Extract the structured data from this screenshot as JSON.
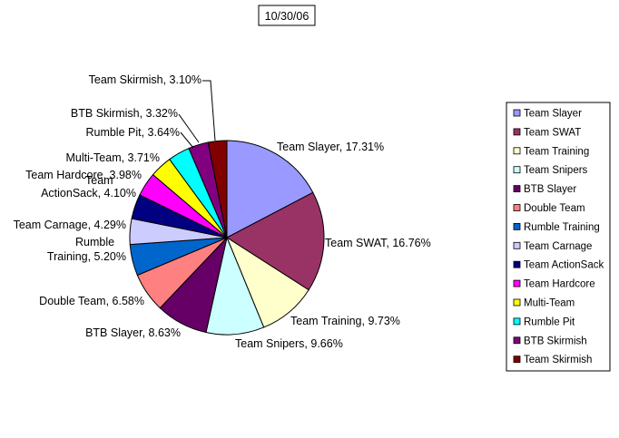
{
  "chart_data": {
    "type": "pie",
    "title": "10/30/06",
    "legend_position": "right",
    "slices": [
      {
        "name": "Team Slayer",
        "value": 17.31,
        "label": "Team Slayer, 17.31%",
        "color": "#9999ff"
      },
      {
        "name": "Team SWAT",
        "value": 16.76,
        "label": "Team SWAT, 16.76%",
        "color": "#993366"
      },
      {
        "name": "Team Training",
        "value": 9.73,
        "label": "Team Training, 9.73%",
        "color": "#ffffcc"
      },
      {
        "name": "Team Snipers",
        "value": 9.66,
        "label": "Team Snipers, 9.66%",
        "color": "#ccffff"
      },
      {
        "name": "BTB Slayer",
        "value": 8.63,
        "label": "BTB Slayer, 8.63%",
        "color": "#660066"
      },
      {
        "name": "Double Team",
        "value": 6.58,
        "label": "Double Team, 6.58%",
        "color": "#ff8080"
      },
      {
        "name": "Rumble Training",
        "value": 5.2,
        "label": [
          "Rumble",
          "Training, 5.20%"
        ],
        "color": "#0066cc"
      },
      {
        "name": "Team Carnage",
        "value": 4.29,
        "label": "Team Carnage, 4.29%",
        "color": "#ccccff"
      },
      {
        "name": "Team ActionSack",
        "value": 4.1,
        "label": [
          "Team",
          "ActionSack, 4.10%"
        ],
        "color": "#000080"
      },
      {
        "name": "Team Hardcore",
        "value": 3.98,
        "label": "Team Hardcore, 3.98%",
        "color": "#ff00ff"
      },
      {
        "name": "Multi-Team",
        "value": 3.71,
        "label": "Multi-Team, 3.71%",
        "color": "#ffff00"
      },
      {
        "name": "Rumble Pit",
        "value": 3.64,
        "label": "Rumble Pit, 3.64%",
        "color": "#00ffff"
      },
      {
        "name": "BTB Skirmish",
        "value": 3.32,
        "label": "BTB Skirmish, 3.32%",
        "color": "#800080"
      },
      {
        "name": "Team Skirmish",
        "value": 3.1,
        "label": "Team Skirmish, 3.10%",
        "color": "#800000"
      }
    ]
  }
}
